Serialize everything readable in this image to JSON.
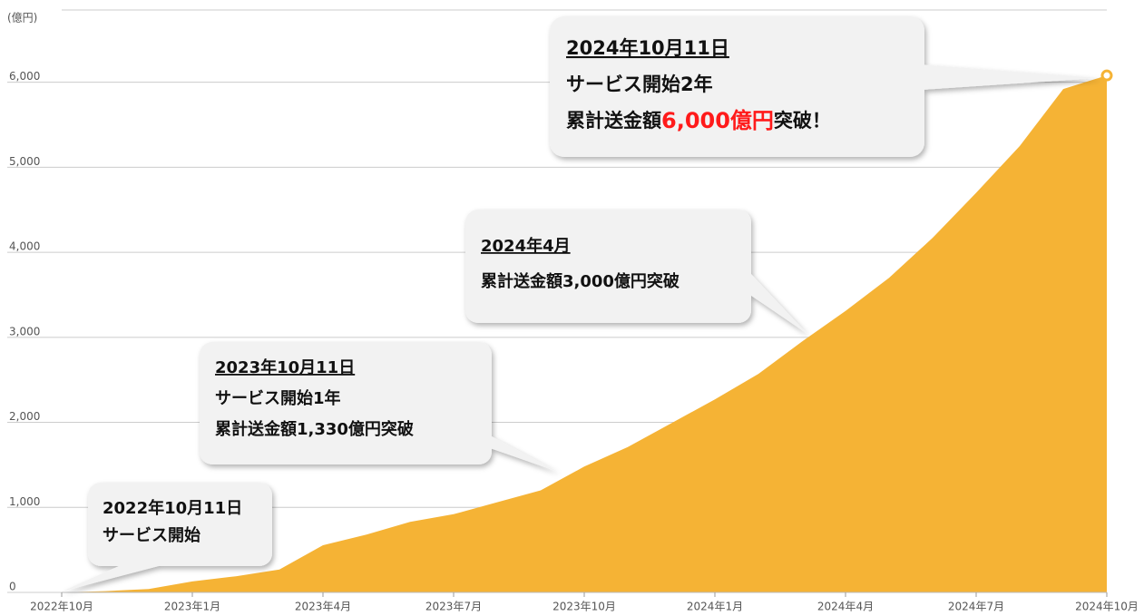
{
  "chart_data": {
    "type": "area",
    "y_label": "(億円)",
    "categories": [
      "2022年10月",
      null,
      null,
      "2023年1月",
      null,
      null,
      "2023年4月",
      null,
      null,
      "2023年7月",
      null,
      null,
      "2023年10月",
      null,
      null,
      "2024年1月",
      null,
      null,
      "2024年4月",
      null,
      null,
      "2024年7月",
      null,
      null,
      "2024年10月"
    ],
    "values": [
      0,
      15,
      40,
      130,
      190,
      270,
      555,
      680,
      830,
      920,
      1060,
      1200,
      1480,
      1710,
      1990,
      2270,
      2570,
      2950,
      3310,
      3700,
      4170,
      4700,
      5250,
      5920,
      6080
    ],
    "color": "#f5b335",
    "ylim": [
      0,
      6850
    ],
    "yticks": [
      0,
      {
        "value": 1000,
        "label": "1,000"
      },
      {
        "value": 2000,
        "label": "2,000"
      },
      {
        "value": 3000,
        "label": "3,000"
      },
      {
        "value": 4000,
        "label": "4,000"
      },
      {
        "value": 5000,
        "label": "5,000"
      },
      {
        "value": 6000,
        "label": "6,000"
      }
    ],
    "grid": true,
    "annotations": [
      {
        "lines": [
          "2022年10月11日",
          "サービス開始"
        ]
      },
      {
        "lines": [
          "2023年10月11日",
          "サービス開始1年",
          "累計送金額1,330億円突破"
        ]
      },
      {
        "lines": [
          "2024年4月",
          "累計送金額3,000億円突破"
        ]
      },
      {
        "lines": [
          "2024年10月11日",
          "サービス開始2年"
        ],
        "highlight": [
          "累計送金額",
          "6,000億円",
          "突破！"
        ]
      }
    ]
  }
}
